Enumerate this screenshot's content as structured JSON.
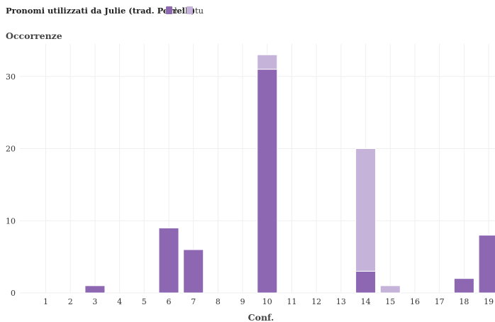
{
  "chart_data": {
    "type": "bar",
    "stacked": true,
    "title": "Pronomi utilizzati da Julie (trad. Perrelli)",
    "xlabel": "Conf.",
    "ylabel": "Occorrenze",
    "categories": [
      "1",
      "2",
      "3",
      "4",
      "5",
      "6",
      "7",
      "8",
      "9",
      "10",
      "11",
      "12",
      "13",
      "14",
      "15",
      "16",
      "17",
      "18",
      "19"
    ],
    "series": [
      {
        "name": "lei",
        "color": "#8e67b3",
        "values": [
          0,
          0,
          1,
          0,
          0,
          9,
          6,
          0,
          0,
          31,
          0,
          0,
          0,
          3,
          0,
          0,
          0,
          2,
          8
        ]
      },
      {
        "name": "tu",
        "color": "#c5b3da",
        "values": [
          0,
          0,
          0,
          0,
          0,
          0,
          0,
          0,
          0,
          2,
          0,
          0,
          0,
          17,
          1,
          0,
          0,
          0,
          0
        ]
      }
    ],
    "ylim": [
      0,
      34.5
    ],
    "yticks": [
      0,
      10,
      20,
      30
    ],
    "grid": true,
    "legend_position": "top-left"
  }
}
